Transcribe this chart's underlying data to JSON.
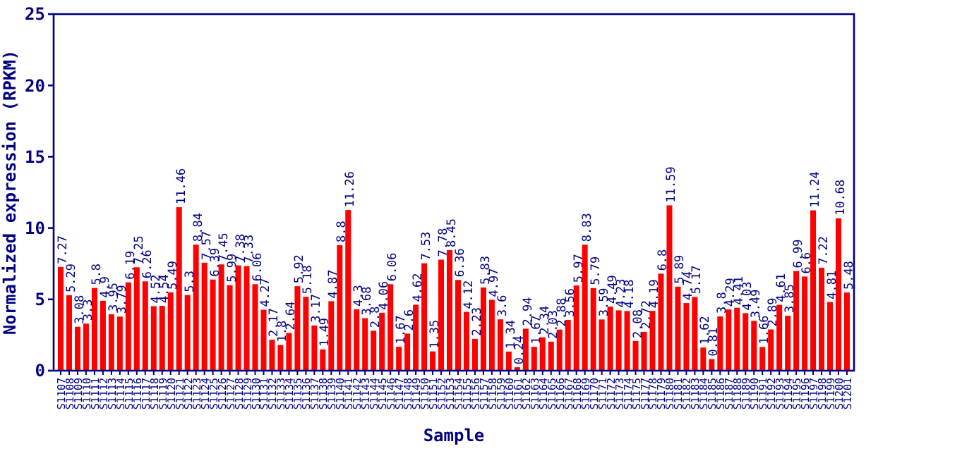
{
  "chart_data": {
    "type": "bar",
    "xlabel": "Sample",
    "ylabel": "Normalized expression (RPKM)",
    "color": "#ff0000",
    "data_labels": true,
    "grid": false,
    "ylim": [
      0,
      25
    ],
    "yticks": [
      0,
      5,
      10,
      15,
      20,
      25
    ],
    "categories": [
      "S1107",
      "S1108",
      "S1109",
      "S1110",
      "S1111",
      "S1112",
      "S1113",
      "S1114",
      "S1115",
      "S1116",
      "S1117",
      "S1118",
      "S1119",
      "S1120",
      "S1121",
      "S1122",
      "S1123",
      "S1124",
      "S1125",
      "S1126",
      "S1127",
      "S1128",
      "S1129",
      "S1130",
      "S1131",
      "S1132",
      "S1133",
      "S1134",
      "S1135",
      "S1136",
      "S1137",
      "S1138",
      "S1139",
      "S1140",
      "S1141",
      "S1142",
      "S1143",
      "S1144",
      "S1145",
      "S1146",
      "S1147",
      "S1148",
      "S1149",
      "S1150",
      "S1151",
      "S1152",
      "S1153",
      "S1154",
      "S1155",
      "S1156",
      "S1157",
      "S1158",
      "S1159",
      "S1160",
      "S1161",
      "S1162",
      "S1163",
      "S1164",
      "S1165",
      "S1166",
      "S1167",
      "S1168",
      "S1169",
      "S1170",
      "S1171",
      "S1172",
      "S1173",
      "S1174",
      "S1175",
      "S1177",
      "S1178",
      "S1179",
      "S1180",
      "S1181",
      "S1182",
      "S1183",
      "S1184",
      "S1185",
      "S1186",
      "S1187",
      "S1188",
      "S1189",
      "S1190",
      "S1191",
      "S1192",
      "S1193",
      "S1194",
      "S1195",
      "S1196",
      "S1197",
      "S1198",
      "S1199",
      "S1200",
      "S1201"
    ],
    "values": [
      7.27,
      5.29,
      3.08,
      3.3,
      5.8,
      4.9,
      3.95,
      3.79,
      6.19,
      7.25,
      6.26,
      4.52,
      4.54,
      5.49,
      11.46,
      5.3,
      8.84,
      7.57,
      6.39,
      7.45,
      5.99,
      7.38,
      7.33,
      6.06,
      4.27,
      2.17,
      1.8,
      2.64,
      5.92,
      5.18,
      3.17,
      1.49,
      4.87,
      8.8,
      11.26,
      4.3,
      3.68,
      2.8,
      4.06,
      6.06,
      1.67,
      2.6,
      4.62,
      7.53,
      1.35,
      7.78,
      8.45,
      6.36,
      4.12,
      2.23,
      5.83,
      4.97,
      3.6,
      1.34,
      0.24,
      2.94,
      1.67,
      2.34,
      2.03,
      2.88,
      3.56,
      5.97,
      8.83,
      5.79,
      3.59,
      4.49,
      4.23,
      4.18,
      2.08,
      2.72,
      4.19,
      6.8,
      11.59,
      5.89,
      4.74,
      5.17,
      1.62,
      0.81,
      3.8,
      4.29,
      4.41,
      4.03,
      3.49,
      1.66,
      2.89,
      4.61,
      3.85,
      6.99,
      6.6,
      11.24,
      7.22,
      4.81,
      10.68,
      5.48
    ]
  }
}
